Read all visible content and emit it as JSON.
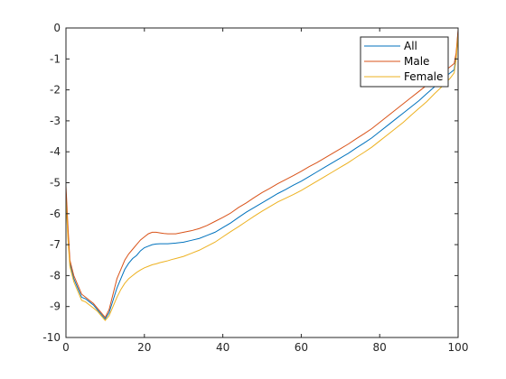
{
  "chart_data": {
    "type": "line",
    "title": "",
    "xlabel": "",
    "ylabel": "",
    "xlim": [
      0,
      100
    ],
    "ylim": [
      -10,
      0
    ],
    "xticks": [
      "0",
      "20",
      "40",
      "60",
      "80",
      "100"
    ],
    "yticks": [
      "0",
      "-1",
      "-2",
      "-3",
      "-4",
      "-5",
      "-6",
      "-7",
      "-8",
      "-9",
      "-10"
    ],
    "grid": false,
    "legend_position": "top-right",
    "series": [
      {
        "name": "All",
        "color": "#0072BD",
        "points": [
          [
            0,
            -5.3
          ],
          [
            0.5,
            -6.6
          ],
          [
            1,
            -7.6
          ],
          [
            2,
            -8.1
          ],
          [
            3,
            -8.4
          ],
          [
            4,
            -8.7
          ],
          [
            5,
            -8.75
          ],
          [
            6,
            -8.85
          ],
          [
            7,
            -8.95
          ],
          [
            8,
            -9.1
          ],
          [
            9,
            -9.25
          ],
          [
            10,
            -9.4
          ],
          [
            11,
            -9.2
          ],
          [
            12,
            -8.8
          ],
          [
            13,
            -8.4
          ],
          [
            14,
            -8.1
          ],
          [
            15,
            -7.8
          ],
          [
            16,
            -7.6
          ],
          [
            17,
            -7.45
          ],
          [
            18,
            -7.35
          ],
          [
            19,
            -7.2
          ],
          [
            20,
            -7.1
          ],
          [
            21,
            -7.05
          ],
          [
            22,
            -7.0
          ],
          [
            23,
            -6.98
          ],
          [
            24,
            -6.97
          ],
          [
            25,
            -6.97
          ],
          [
            26,
            -6.97
          ],
          [
            27,
            -6.96
          ],
          [
            28,
            -6.95
          ],
          [
            30,
            -6.92
          ],
          [
            32,
            -6.86
          ],
          [
            34,
            -6.8
          ],
          [
            36,
            -6.7
          ],
          [
            38,
            -6.6
          ],
          [
            40,
            -6.45
          ],
          [
            42,
            -6.3
          ],
          [
            44,
            -6.12
          ],
          [
            46,
            -5.95
          ],
          [
            48,
            -5.8
          ],
          [
            50,
            -5.65
          ],
          [
            52,
            -5.5
          ],
          [
            54,
            -5.35
          ],
          [
            56,
            -5.22
          ],
          [
            58,
            -5.08
          ],
          [
            60,
            -4.95
          ],
          [
            62,
            -4.8
          ],
          [
            64,
            -4.65
          ],
          [
            66,
            -4.5
          ],
          [
            68,
            -4.35
          ],
          [
            70,
            -4.2
          ],
          [
            72,
            -4.05
          ],
          [
            74,
            -3.88
          ],
          [
            76,
            -3.72
          ],
          [
            78,
            -3.55
          ],
          [
            80,
            -3.35
          ],
          [
            82,
            -3.15
          ],
          [
            84,
            -2.95
          ],
          [
            86,
            -2.75
          ],
          [
            88,
            -2.55
          ],
          [
            90,
            -2.35
          ],
          [
            92,
            -2.12
          ],
          [
            94,
            -1.9
          ],
          [
            96,
            -1.65
          ],
          [
            98,
            -1.45
          ],
          [
            99,
            -1.35
          ],
          [
            99.5,
            -0.9
          ],
          [
            100,
            -0.1
          ]
        ]
      },
      {
        "name": "Male",
        "color": "#D95319",
        "points": [
          [
            0,
            -5.1
          ],
          [
            0.5,
            -6.4
          ],
          [
            1,
            -7.5
          ],
          [
            2,
            -8.0
          ],
          [
            3,
            -8.3
          ],
          [
            4,
            -8.6
          ],
          [
            5,
            -8.7
          ],
          [
            6,
            -8.8
          ],
          [
            7,
            -8.9
          ],
          [
            8,
            -9.05
          ],
          [
            9,
            -9.2
          ],
          [
            10,
            -9.35
          ],
          [
            11,
            -9.1
          ],
          [
            12,
            -8.6
          ],
          [
            13,
            -8.1
          ],
          [
            14,
            -7.8
          ],
          [
            15,
            -7.5
          ],
          [
            16,
            -7.3
          ],
          [
            17,
            -7.15
          ],
          [
            18,
            -7.0
          ],
          [
            19,
            -6.85
          ],
          [
            20,
            -6.75
          ],
          [
            21,
            -6.65
          ],
          [
            22,
            -6.6
          ],
          [
            23,
            -6.6
          ],
          [
            24,
            -6.62
          ],
          [
            25,
            -6.64
          ],
          [
            26,
            -6.65
          ],
          [
            27,
            -6.65
          ],
          [
            28,
            -6.65
          ],
          [
            30,
            -6.6
          ],
          [
            32,
            -6.55
          ],
          [
            34,
            -6.48
          ],
          [
            36,
            -6.38
          ],
          [
            38,
            -6.25
          ],
          [
            40,
            -6.12
          ],
          [
            42,
            -5.98
          ],
          [
            44,
            -5.8
          ],
          [
            46,
            -5.65
          ],
          [
            48,
            -5.48
          ],
          [
            50,
            -5.32
          ],
          [
            52,
            -5.18
          ],
          [
            54,
            -5.03
          ],
          [
            56,
            -4.9
          ],
          [
            58,
            -4.77
          ],
          [
            60,
            -4.63
          ],
          [
            62,
            -4.48
          ],
          [
            64,
            -4.35
          ],
          [
            66,
            -4.2
          ],
          [
            68,
            -4.05
          ],
          [
            70,
            -3.9
          ],
          [
            72,
            -3.75
          ],
          [
            74,
            -3.58
          ],
          [
            76,
            -3.42
          ],
          [
            78,
            -3.25
          ],
          [
            80,
            -3.05
          ],
          [
            82,
            -2.85
          ],
          [
            84,
            -2.65
          ],
          [
            86,
            -2.45
          ],
          [
            88,
            -2.25
          ],
          [
            90,
            -2.05
          ],
          [
            92,
            -1.85
          ],
          [
            94,
            -1.65
          ],
          [
            96,
            -1.45
          ],
          [
            98,
            -1.25
          ],
          [
            99,
            -1.15
          ],
          [
            99.5,
            -0.8
          ],
          [
            100,
            -0.05
          ]
        ]
      },
      {
        "name": "Female",
        "color": "#EDB120",
        "points": [
          [
            0,
            -5.5
          ],
          [
            0.5,
            -6.8
          ],
          [
            1,
            -7.7
          ],
          [
            2,
            -8.2
          ],
          [
            3,
            -8.5
          ],
          [
            4,
            -8.8
          ],
          [
            5,
            -8.85
          ],
          [
            6,
            -8.95
          ],
          [
            7,
            -9.05
          ],
          [
            8,
            -9.15
          ],
          [
            9,
            -9.3
          ],
          [
            10,
            -9.45
          ],
          [
            11,
            -9.3
          ],
          [
            12,
            -9.0
          ],
          [
            13,
            -8.7
          ],
          [
            14,
            -8.45
          ],
          [
            15,
            -8.25
          ],
          [
            16,
            -8.1
          ],
          [
            17,
            -8.0
          ],
          [
            18,
            -7.9
          ],
          [
            19,
            -7.82
          ],
          [
            20,
            -7.75
          ],
          [
            21,
            -7.7
          ],
          [
            22,
            -7.65
          ],
          [
            23,
            -7.62
          ],
          [
            24,
            -7.58
          ],
          [
            25,
            -7.55
          ],
          [
            26,
            -7.52
          ],
          [
            27,
            -7.48
          ],
          [
            28,
            -7.45
          ],
          [
            30,
            -7.38
          ],
          [
            32,
            -7.28
          ],
          [
            34,
            -7.18
          ],
          [
            36,
            -7.05
          ],
          [
            38,
            -6.92
          ],
          [
            40,
            -6.75
          ],
          [
            42,
            -6.58
          ],
          [
            44,
            -6.42
          ],
          [
            46,
            -6.25
          ],
          [
            48,
            -6.08
          ],
          [
            50,
            -5.92
          ],
          [
            52,
            -5.77
          ],
          [
            54,
            -5.62
          ],
          [
            56,
            -5.5
          ],
          [
            58,
            -5.38
          ],
          [
            60,
            -5.25
          ],
          [
            62,
            -5.1
          ],
          [
            64,
            -4.95
          ],
          [
            66,
            -4.8
          ],
          [
            68,
            -4.65
          ],
          [
            70,
            -4.5
          ],
          [
            72,
            -4.35
          ],
          [
            74,
            -4.18
          ],
          [
            76,
            -4.02
          ],
          [
            78,
            -3.85
          ],
          [
            80,
            -3.65
          ],
          [
            82,
            -3.45
          ],
          [
            84,
            -3.25
          ],
          [
            86,
            -3.05
          ],
          [
            88,
            -2.82
          ],
          [
            90,
            -2.6
          ],
          [
            92,
            -2.38
          ],
          [
            94,
            -2.12
          ],
          [
            96,
            -1.88
          ],
          [
            98,
            -1.62
          ],
          [
            99,
            -1.45
          ],
          [
            99.5,
            -1.0
          ],
          [
            100,
            -0.2
          ]
        ]
      }
    ]
  }
}
